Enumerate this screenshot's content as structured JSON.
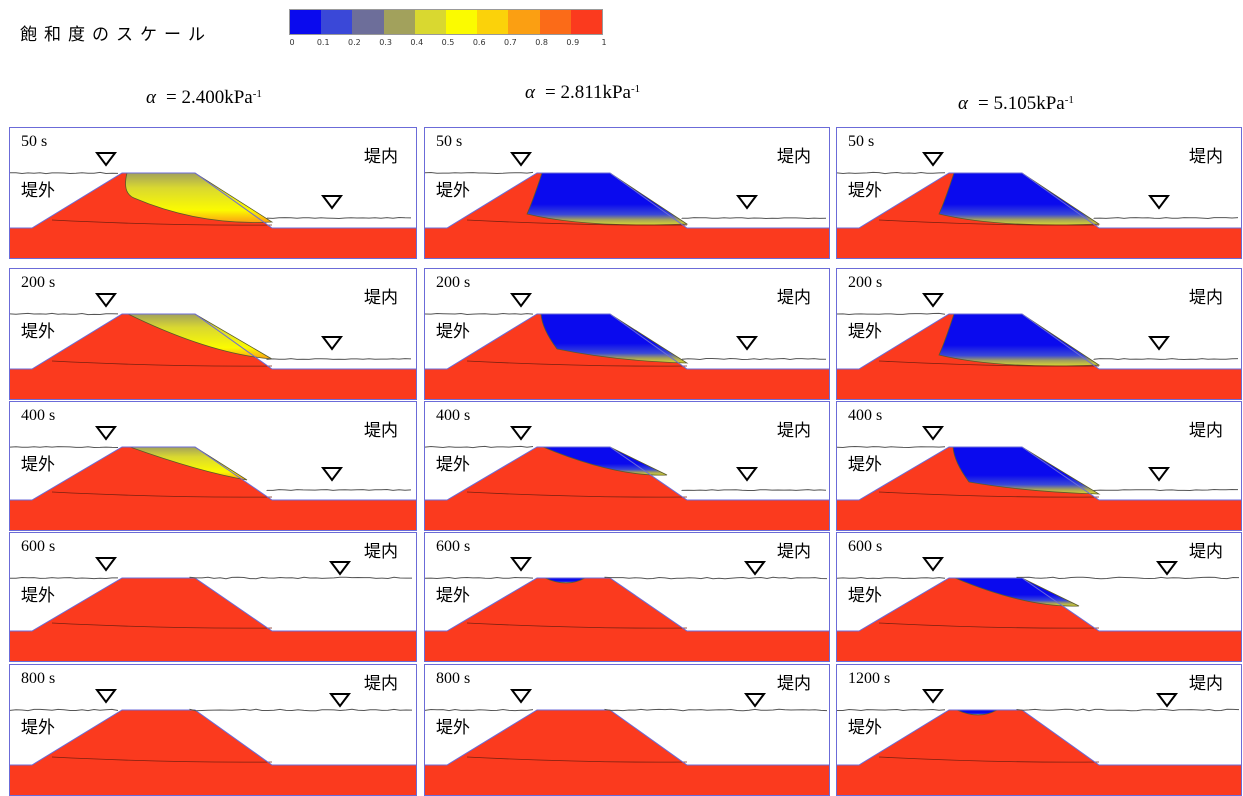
{
  "scale": {
    "title": "飽和度のスケール",
    "colors": [
      "#0a0aee",
      "#3a48d8",
      "#6d6e9a",
      "#a2a15c",
      "#d9d830",
      "#fbfb00",
      "#fbd20a",
      "#fb9f12",
      "#fb6b18",
      "#fb3a1e"
    ],
    "ticks": [
      "0",
      "0.1",
      "0.2",
      "0.3",
      "0.4",
      "0.5",
      "0.6",
      "0.7",
      "0.8",
      "0.9",
      "1"
    ]
  },
  "columns": [
    {
      "alpha_symbol": "α",
      "alpha_value": "= 2.400kPa",
      "alpha_exp": "-1"
    },
    {
      "alpha_symbol": "α",
      "alpha_value": "= 2.811kPa",
      "alpha_exp": "-1"
    },
    {
      "alpha_symbol": "α",
      "alpha_value": "= 5.105kPa",
      "alpha_exp": "-1"
    }
  ],
  "labels": {
    "outside": "堤外",
    "inside": "堤内"
  },
  "panels": [
    {
      "time": "50 s",
      "col": 0,
      "core": "yellow"
    },
    {
      "time": "50 s",
      "col": 1,
      "core": "blue"
    },
    {
      "time": "50 s",
      "col": 2,
      "core": "blue"
    },
    {
      "time": "200 s",
      "col": 0,
      "core": "yellow-partial"
    },
    {
      "time": "200 s",
      "col": 1,
      "core": "blue-partial"
    },
    {
      "time": "200 s",
      "col": 2,
      "core": "blue"
    },
    {
      "time": "400 s",
      "col": 0,
      "core": "yellow-thin"
    },
    {
      "time": "400 s",
      "col": 1,
      "core": "blue-small"
    },
    {
      "time": "400 s",
      "col": 2,
      "core": "blue-partial"
    },
    {
      "time": "600 s",
      "col": 0,
      "core": "none"
    },
    {
      "time": "600 s",
      "col": 1,
      "core": "blue-tiny"
    },
    {
      "time": "600 s",
      "col": 2,
      "core": "blue-small"
    },
    {
      "time": "800 s",
      "col": 0,
      "core": "none"
    },
    {
      "time": "800 s",
      "col": 1,
      "core": "none"
    },
    {
      "time": "1200 s",
      "col": 2,
      "core": "blue-tiny"
    }
  ]
}
